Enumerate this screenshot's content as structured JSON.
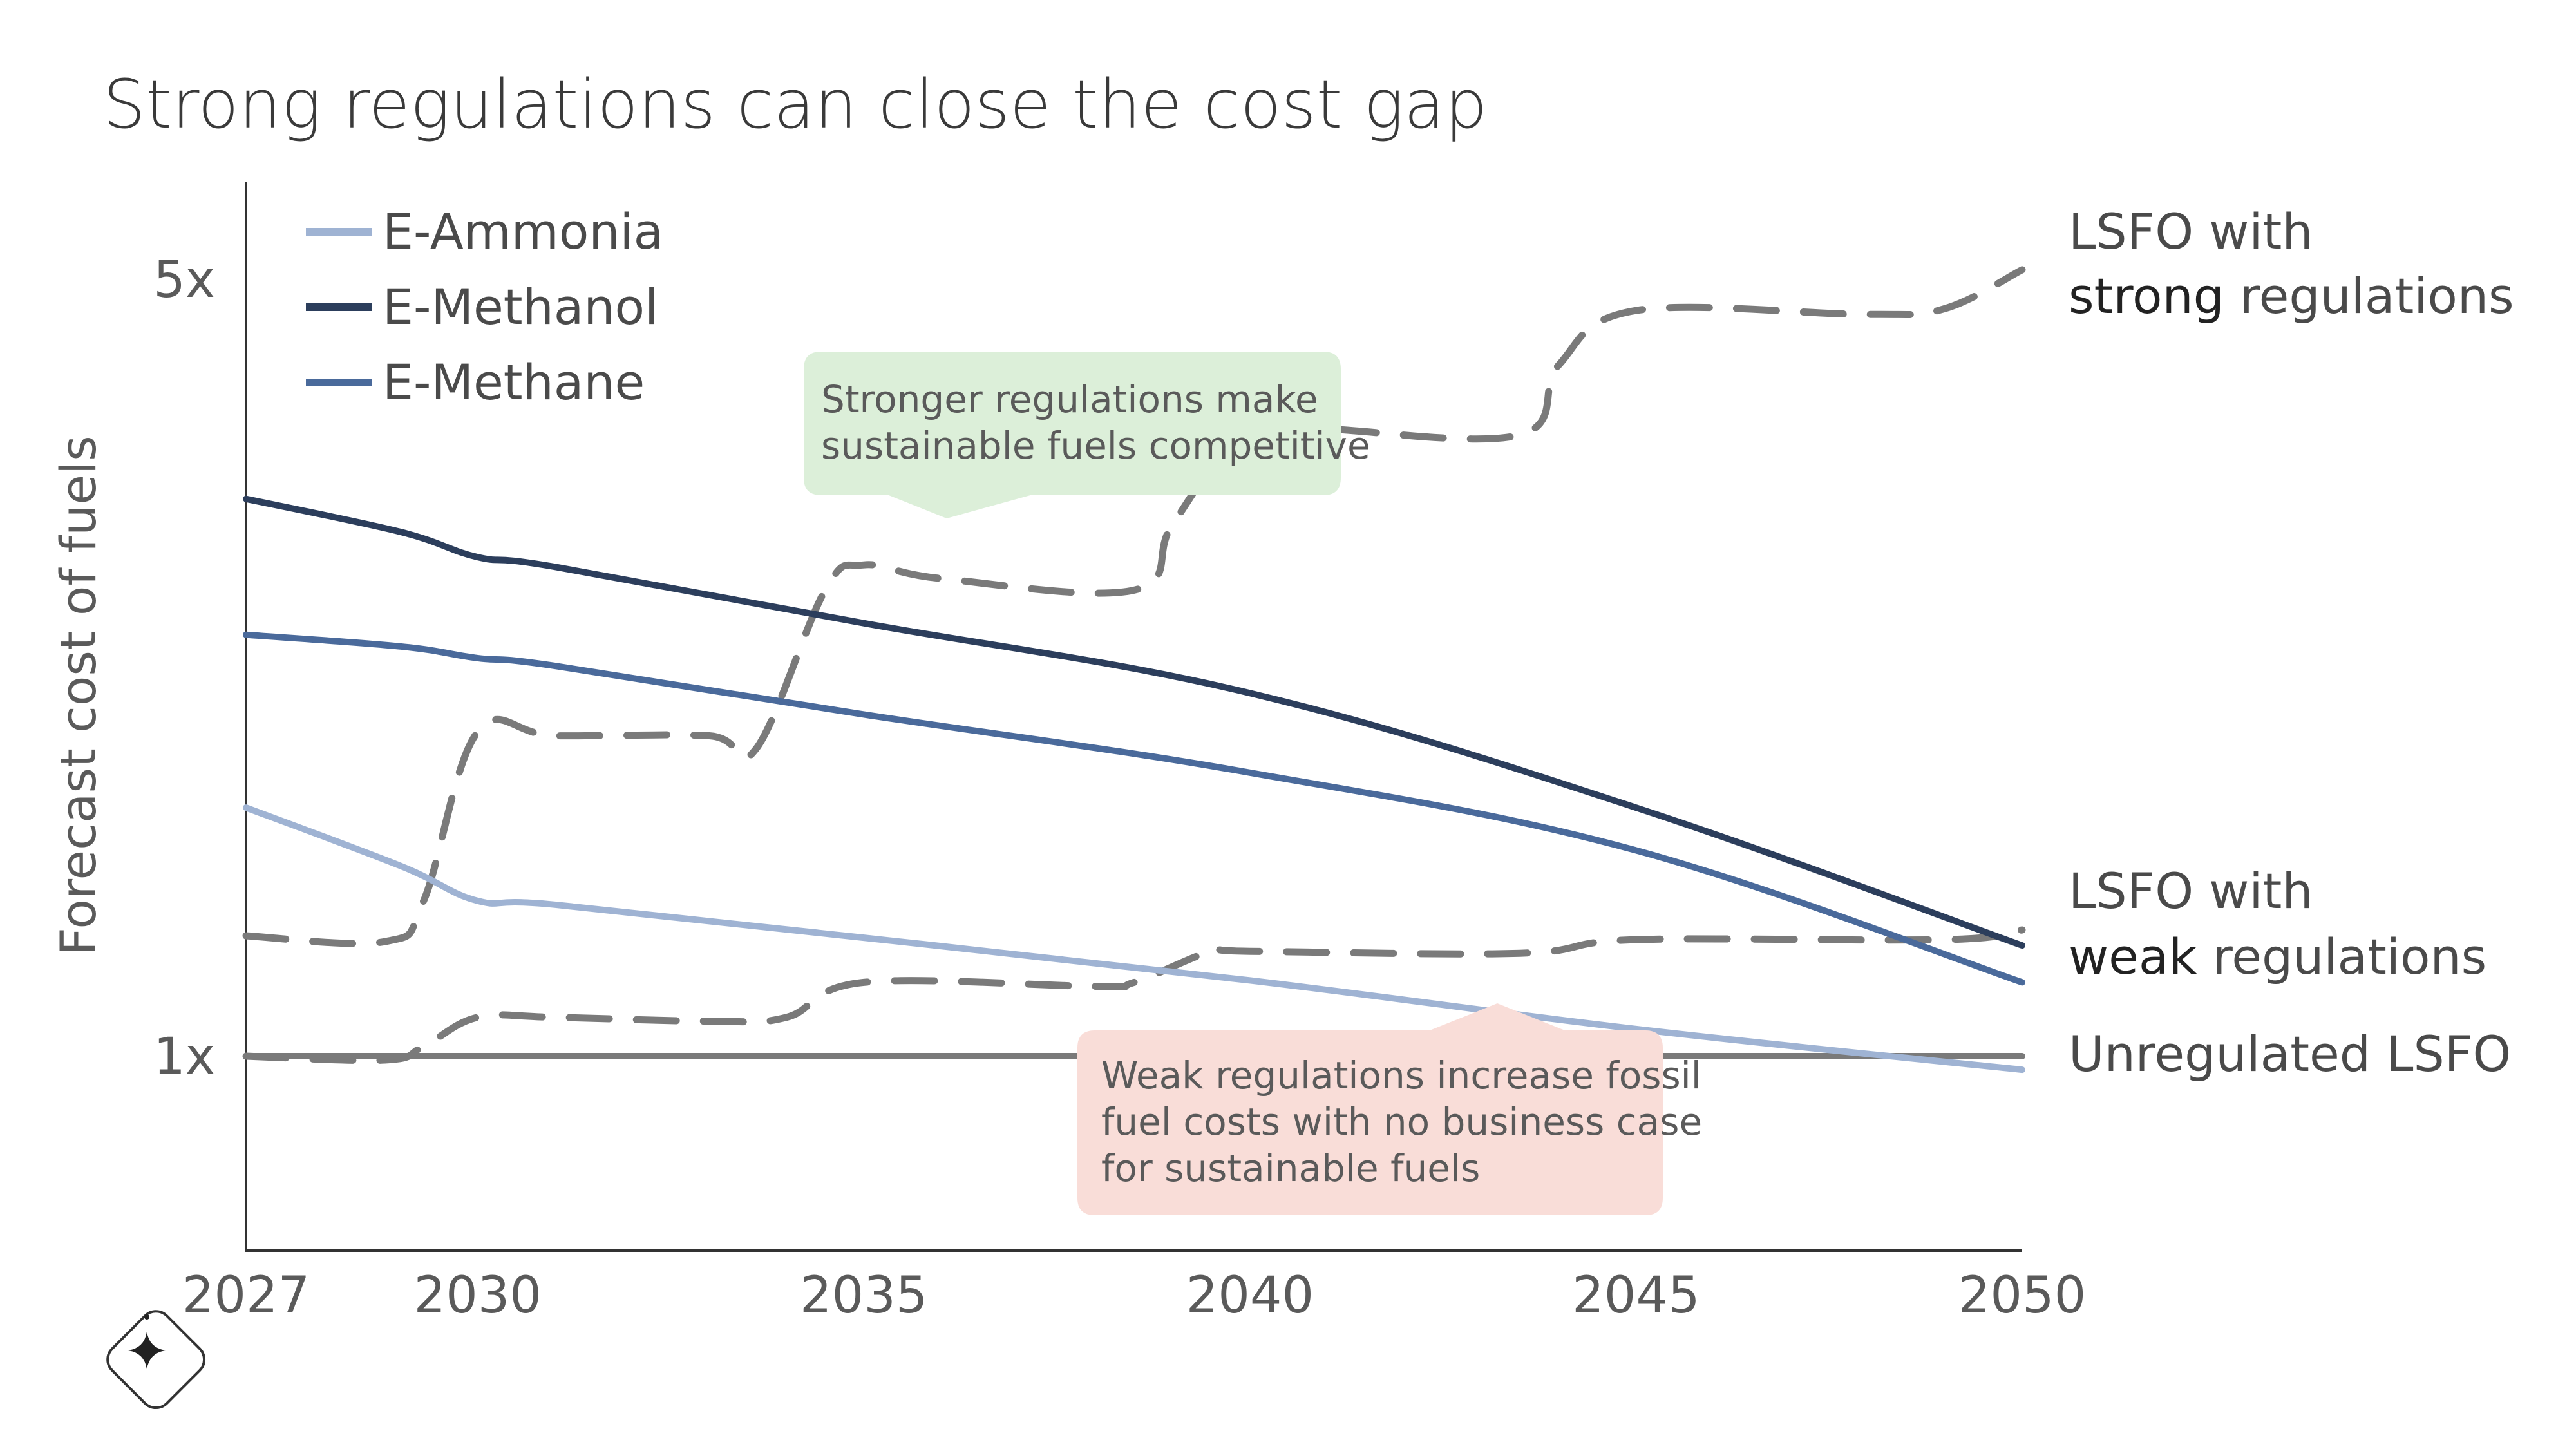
{
  "chart_data": {
    "type": "line",
    "title": "Strong regulations can close the cost gap",
    "ylabel": "Forecast cost of fuels",
    "xlabel": "",
    "xlim": [
      2027,
      2050
    ],
    "ylim": [
      0,
      5.5
    ],
    "xticks": [
      2027,
      2030,
      2035,
      2040,
      2045,
      2050
    ],
    "xtick_labels": [
      "2027",
      "2030",
      "2035",
      "2040",
      "2045",
      "2050"
    ],
    "yticks": [
      1,
      5
    ],
    "ytick_labels": [
      "1x",
      "5x"
    ],
    "grid": false,
    "legend_position": "top-left",
    "series": [
      {
        "name": "E-Ammonia",
        "color": "#9fb3d3",
        "style": "solid",
        "x": [
          2027,
          2029,
          2030,
          2031,
          2035,
          2040,
          2045,
          2050
        ],
        "y": [
          2.28,
          1.98,
          1.8,
          1.78,
          1.61,
          1.39,
          1.14,
          0.93
        ]
      },
      {
        "name": "E-Methanol",
        "color": "#2c3e5c",
        "style": "solid",
        "x": [
          2027,
          2029,
          2030,
          2031,
          2035,
          2040,
          2045,
          2050
        ],
        "y": [
          3.87,
          3.7,
          3.57,
          3.52,
          3.23,
          2.87,
          2.28,
          1.57
        ]
      },
      {
        "name": "E-Methane",
        "color": "#4a6a9b",
        "style": "solid",
        "x": [
          2027,
          2029,
          2030,
          2031,
          2035,
          2040,
          2045,
          2050
        ],
        "y": [
          3.17,
          3.11,
          3.05,
          3.01,
          2.76,
          2.46,
          2.06,
          1.38
        ]
      },
      {
        "name": "LSFO with strong regulations",
        "color": "#7a7a7a",
        "style": "dashed",
        "x": [
          2027,
          2028.8,
          2029.3,
          2030,
          2031,
          2033,
          2033.6,
          2034.5,
          2035,
          2036,
          2038.5,
          2039,
          2040,
          2041,
          2043.5,
          2044,
          2045,
          2048,
          2049,
          2050
        ],
        "y": [
          1.62,
          1.59,
          1.8,
          2.67,
          2.65,
          2.65,
          2.58,
          3.4,
          3.53,
          3.46,
          3.4,
          3.74,
          4.25,
          4.23,
          4.2,
          4.56,
          4.84,
          4.82,
          4.85,
          5.05
        ]
      },
      {
        "name": "LSFO with weak regulations",
        "color": "#7a7a7a",
        "style": "dashed",
        "x": [
          2027,
          2028.8,
          2029.3,
          2030,
          2031,
          2033,
          2034,
          2035,
          2038,
          2038.5,
          2039.5,
          2040,
          2043.5,
          2045,
          2049,
          2050
        ],
        "y": [
          1.0,
          0.98,
          1.05,
          1.2,
          1.2,
          1.18,
          1.2,
          1.38,
          1.36,
          1.38,
          1.54,
          1.54,
          1.53,
          1.6,
          1.6,
          1.65
        ]
      },
      {
        "name": "Unregulated LSFO",
        "color": "#7a7a7a",
        "style": "solid",
        "x": [
          2027,
          2050
        ],
        "y": [
          1.0,
          1.0
        ]
      }
    ],
    "end_labels": [
      {
        "line1": "LSFO with",
        "bold": "strong",
        "rest": " regulations"
      },
      {
        "line1": "LSFO with",
        "bold": "weak",
        "rest": " regulations"
      },
      {
        "line1": "Unregulated LSFO",
        "bold": "",
        "rest": ""
      }
    ],
    "annotations": [
      {
        "lines": [
          "Stronger regulations make",
          "sustainable fuels competitive"
        ],
        "color": "#dcefd9"
      },
      {
        "lines": [
          "Weak regulations increase fossil",
          "fuel costs with no business case",
          "for sustainable fuels"
        ],
        "color": "#f9ddd8"
      }
    ]
  },
  "badge": {
    "icon": "sparkle-icon"
  }
}
